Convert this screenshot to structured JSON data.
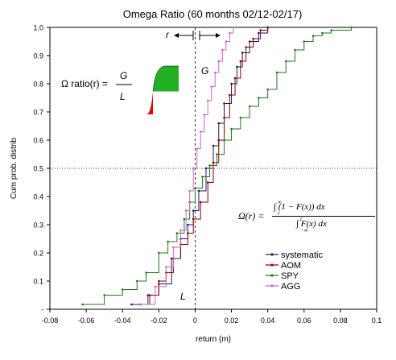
{
  "chart_data": {
    "type": "line",
    "title": "Omega Ratio (60 months 02/12-02/17)",
    "xlabel": "return (m)",
    "ylabel": "Cum prob. distrib",
    "xlim": [
      -0.08,
      0.1
    ],
    "ylim": [
      0,
      1
    ],
    "x_ticks": [
      "-0.08",
      "-0.06",
      "-0.04",
      "-0.02",
      "0",
      "0.02",
      "0.04",
      "0.06",
      "0.08",
      "0.1"
    ],
    "y_ticks": [
      "-",
      "0.1",
      "0.2",
      "0.3",
      "0.4",
      "0.5",
      "0.6",
      "0.7",
      "0.8",
      "0.9",
      "1.0"
    ],
    "y_tick_values": [
      0,
      0.1,
      0.2,
      0.3,
      0.4,
      0.5,
      0.6,
      0.7,
      0.8,
      0.9,
      1.0
    ],
    "reference_lines": {
      "vertical_x": 0,
      "horizontal_y": 0.5
    },
    "legend_placement": "bottom-right",
    "series": [
      {
        "name": "systematic",
        "color": "#1a1a6e",
        "x": [
          -0.035,
          -0.026,
          -0.02,
          -0.013,
          -0.008,
          -0.004,
          -0.001,
          0.002,
          0.006,
          0.01,
          0.013,
          0.016,
          0.02,
          0.023,
          0.026,
          0.03,
          0.035,
          0.04
        ],
        "y": [
          0.017,
          0.05,
          0.09,
          0.18,
          0.25,
          0.3,
          0.35,
          0.42,
          0.5,
          0.58,
          0.66,
          0.73,
          0.8,
          0.86,
          0.91,
          0.95,
          0.98,
          1.0
        ]
      },
      {
        "name": "AOM",
        "color": "#8b0000",
        "x": [
          -0.03,
          -0.025,
          -0.02,
          -0.016,
          -0.012,
          -0.008,
          -0.004,
          -0.001,
          0.003,
          0.007,
          0.01,
          0.013,
          0.016,
          0.019,
          0.022,
          0.025,
          0.028,
          0.032,
          0.036,
          0.04
        ],
        "y": [
          0.017,
          0.05,
          0.1,
          0.13,
          0.18,
          0.23,
          0.27,
          0.32,
          0.38,
          0.45,
          0.52,
          0.6,
          0.68,
          0.76,
          0.82,
          0.88,
          0.93,
          0.96,
          0.99,
          1.0
        ]
      },
      {
        "name": "SPY",
        "color": "#1e7a1e",
        "x": [
          -0.062,
          -0.05,
          -0.04,
          -0.032,
          -0.027,
          -0.02,
          -0.015,
          -0.01,
          -0.006,
          -0.003,
          0.0,
          0.004,
          0.008,
          0.012,
          0.016,
          0.02,
          0.025,
          0.03,
          0.035,
          0.04,
          0.045,
          0.05,
          0.055,
          0.06,
          0.065,
          0.07,
          0.075,
          0.086
        ],
        "y": [
          0.017,
          0.05,
          0.07,
          0.1,
          0.13,
          0.2,
          0.24,
          0.27,
          0.32,
          0.38,
          0.43,
          0.47,
          0.51,
          0.55,
          0.6,
          0.64,
          0.68,
          0.72,
          0.75,
          0.78,
          0.84,
          0.88,
          0.92,
          0.95,
          0.97,
          0.98,
          0.99,
          1.0
        ]
      },
      {
        "name": "AGG",
        "color": "#cc66cc",
        "x": [
          -0.03,
          -0.022,
          -0.016,
          -0.012,
          -0.008,
          -0.005,
          -0.003,
          -0.001,
          0.001,
          0.003,
          0.005,
          0.007,
          0.009,
          0.011,
          0.013,
          0.015,
          0.017,
          0.019,
          0.021
        ],
        "y": [
          0.017,
          0.08,
          0.15,
          0.22,
          0.28,
          0.35,
          0.42,
          0.5,
          0.57,
          0.63,
          0.69,
          0.74,
          0.79,
          0.84,
          0.88,
          0.92,
          0.95,
          0.98,
          1.0
        ]
      }
    ],
    "annotations": {
      "omega_label": "Ω ratio(r) =",
      "numerator": "G",
      "denominator": "L",
      "formula": "Ω(r) = ∫r∞ (1 − F(x)) dx / ∫−∞r F(x) dx",
      "formula_lhs": "Ω(r) =",
      "formula_num": "∫ (1 − F(x)) dx",
      "formula_num_sup": "∞",
      "formula_num_sub": "r",
      "formula_den": "∫ F(x) dx",
      "formula_den_sup": "r",
      "formula_den_sub": "−∞",
      "r_label": "r",
      "G_label": "G",
      "L_label": "L"
    }
  }
}
